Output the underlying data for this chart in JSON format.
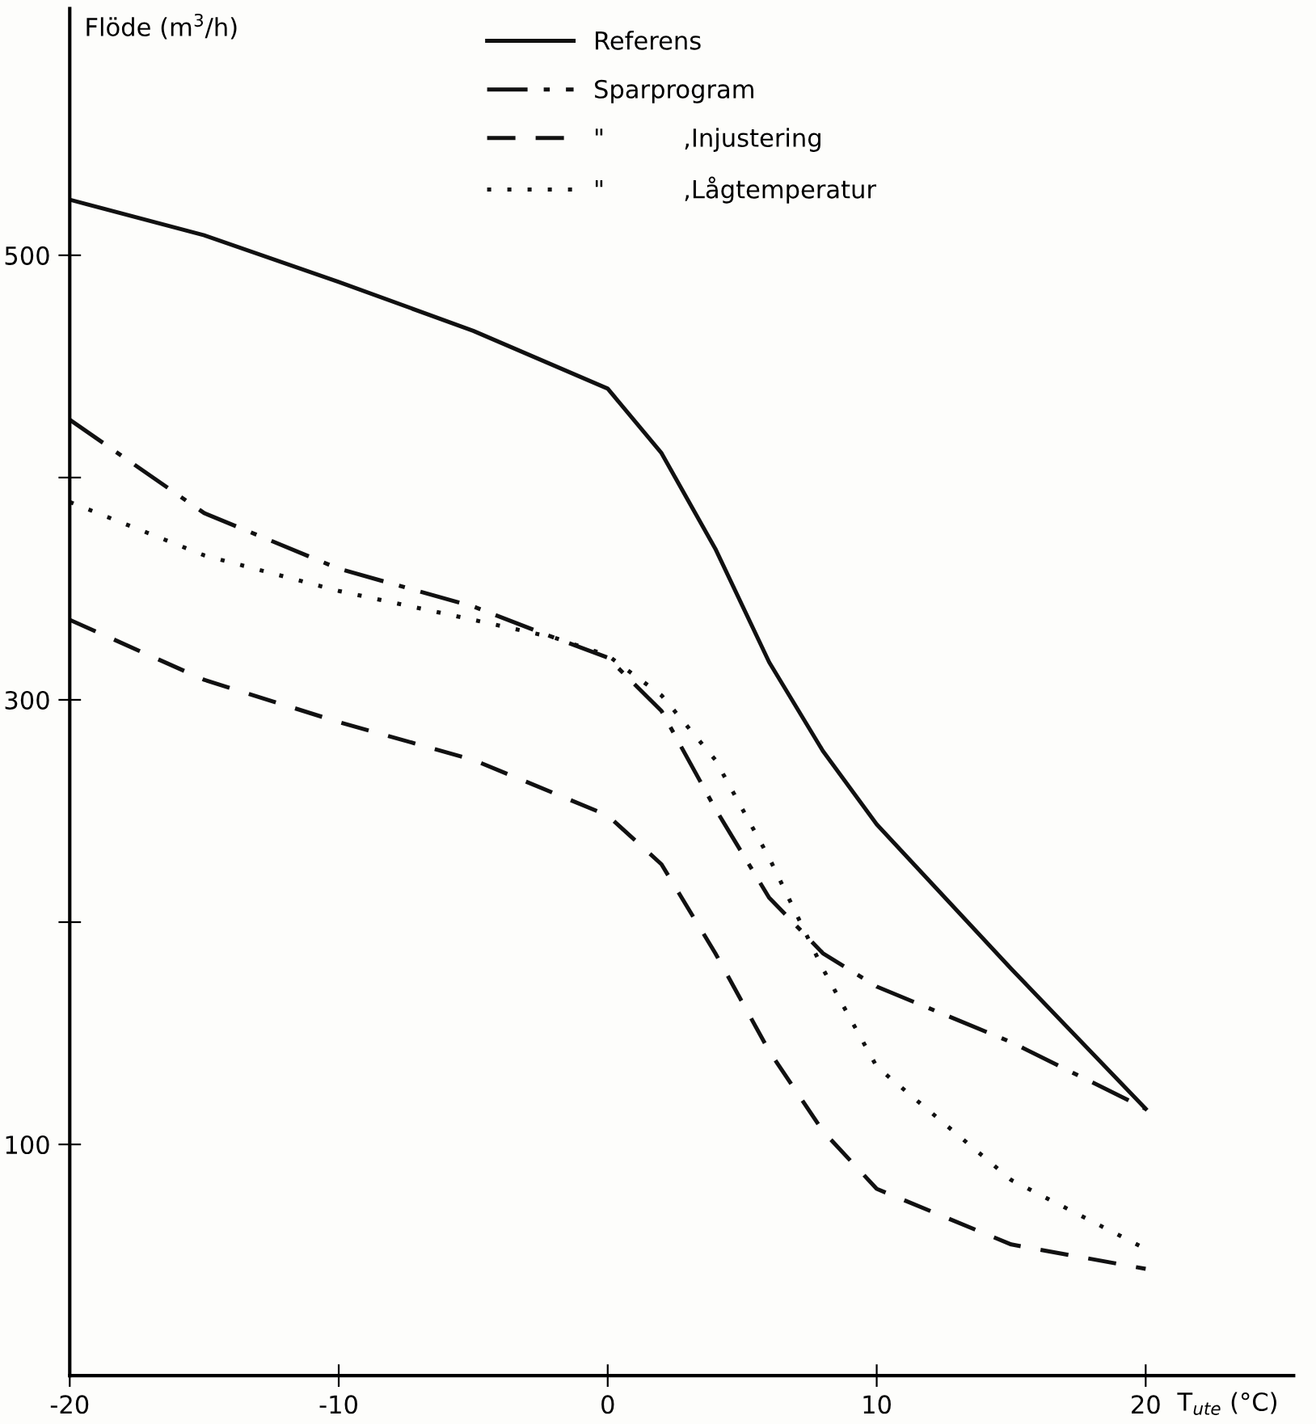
{
  "chart_data": {
    "type": "line",
    "ylabel": "Flöde (m$^{3}$/h)",
    "xlabel": "T$_{ute}$ (°C)",
    "xlim": [
      -20,
      25.5
    ],
    "ylim": [
      -4,
      611
    ],
    "xticks": [
      -20,
      -10,
      0,
      10,
      20
    ],
    "yticks": [
      100,
      {
        "value": 200,
        "label": null
      },
      300,
      {
        "value": 400,
        "label": null
      },
      500
    ],
    "grid": false,
    "legend": "top",
    "marker": "none",
    "series": [
      {
        "name": "Referens",
        "color": "#111111",
        "line_style": "solid",
        "x": [
          -20,
          -15,
          -10,
          -5,
          0,
          2,
          4,
          6,
          8,
          10,
          15,
          20
        ],
        "values": [
          525,
          509,
          488,
          466,
          440,
          411,
          368,
          317,
          277,
          244,
          179,
          116
        ]
      },
      {
        "name": "Sparprogram",
        "color": "#111111",
        "line_style": "dashdot",
        "x": [
          -20,
          -15,
          -10,
          -5,
          -2,
          0,
          2,
          4,
          6,
          8,
          10,
          15,
          20
        ],
        "values": [
          426,
          384,
          359,
          342,
          328,
          319,
          295,
          251,
          211,
          186,
          171,
          146,
          116
        ]
      },
      {
        "name": "\"          ,Injustering",
        "color": "#111111",
        "line_style": "dashed",
        "x": [
          -20,
          -15,
          -10,
          -5,
          0,
          2,
          4,
          6,
          8,
          10,
          15,
          20
        ],
        "values": [
          336,
          309,
          290,
          273,
          248,
          226,
          186,
          142,
          106,
          80,
          55,
          44
        ]
      },
      {
        "name": "\"          ,Lågtemperatur",
        "color": "#111111",
        "line_style": "dotted",
        "x": [
          -20,
          -15,
          -10,
          -5,
          -2,
          0,
          2,
          4,
          6,
          8,
          10,
          15,
          20
        ],
        "values": [
          389,
          365,
          349,
          336,
          328,
          320,
          302,
          273,
          229,
          179,
          135,
          84,
          53
        ]
      }
    ]
  }
}
